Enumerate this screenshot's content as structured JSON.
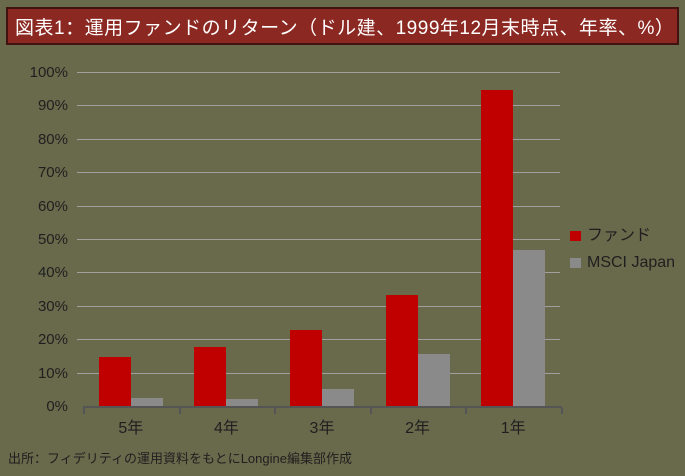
{
  "page": {
    "background": "#69694C"
  },
  "title_bar": {
    "text": "図表1：運用ファンドのリターン（ドル建、1999年12月末時点、年率、%）",
    "bg": "#8B2821",
    "border": "#401210",
    "text_color": "#FFFFFF"
  },
  "source_note": {
    "text": "出所：フィデリティの運用資料をもとにLongine編集部作成"
  },
  "chart_data": {
    "type": "bar",
    "title": "運用ファンドのリターン（ドル建、1999年12月末時点、年率、%）",
    "categories": [
      "5年",
      "4年",
      "3年",
      "2年",
      "1年"
    ],
    "series": [
      {
        "name": "ファンド",
        "color": "#C00000",
        "values": [
          15.0,
          18.0,
          23.0,
          33.4,
          94.9
        ]
      },
      {
        "name": "MSCI Japan",
        "color": "#8A8A8A",
        "values": [
          2.7,
          2.5,
          5.3,
          16.0,
          47.0
        ]
      }
    ],
    "ylim": [
      0,
      100
    ],
    "ytick_step": 10,
    "ytick_suffix": "%",
    "grid": true,
    "legend_position": "right",
    "colors": {
      "gridline": "#A0A0A0",
      "axis": "#555555",
      "label": "#1F1F1F"
    }
  }
}
